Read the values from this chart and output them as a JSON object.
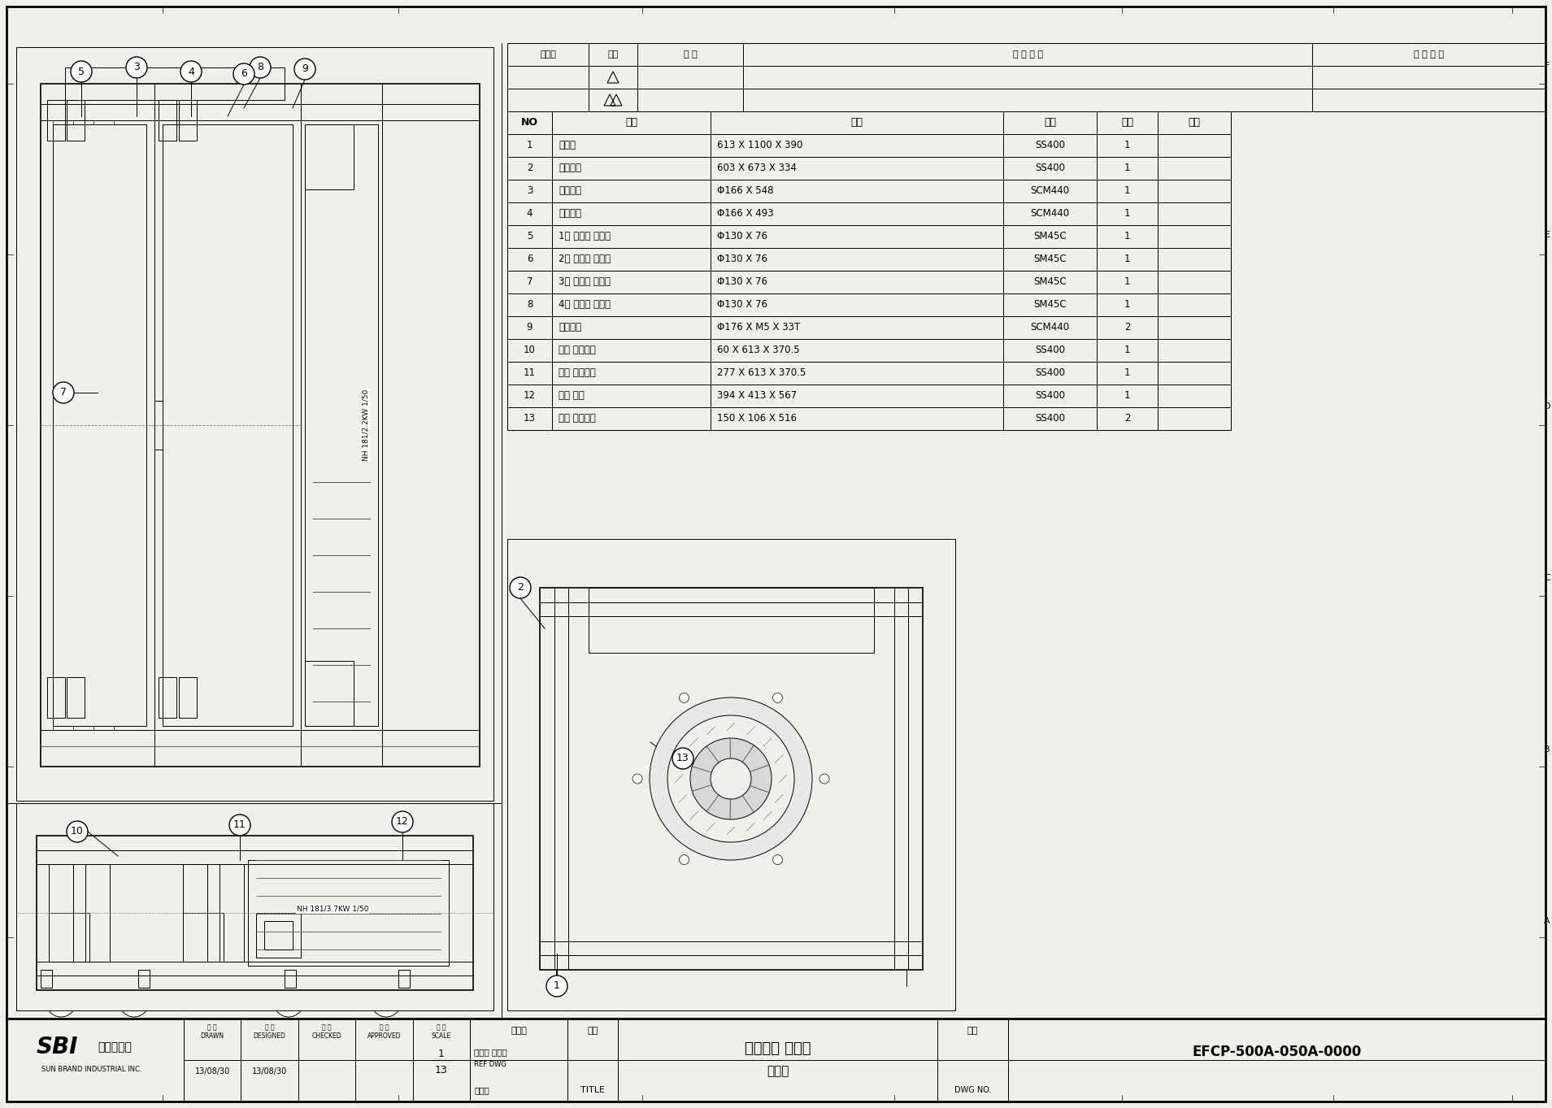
{
  "bg_color": "#f0f0eb",
  "border_color": "#000000",
  "line_color": "#000000",
  "parts_table": {
    "headers": [
      "NO",
      "품명",
      "규격",
      "재질",
      "수량",
      "비고"
    ],
    "rows": [
      [
        "1",
        "프레임",
        "613 X 1100 X 390",
        "SS400",
        "1",
        ""
      ],
      [
        "2",
        "투입호퍼",
        "603 X 673 X 334",
        "SS400",
        "1",
        ""
      ],
      [
        "3",
        "구동롤러",
        "Φ166 X 548",
        "SCM440",
        "1",
        ""
      ],
      [
        "4",
        "피동롤러",
        "Φ166 X 493",
        "SCM440",
        "1",
        ""
      ],
      [
        "5",
        "1번 베어링 케이스",
        "Φ130 X 76",
        "SM45C",
        "1",
        ""
      ],
      [
        "6",
        "2번 베어링 케이스",
        "Φ130 X 76",
        "SM45C",
        "1",
        ""
      ],
      [
        "7",
        "3번 베어링 케이스",
        "Φ130 X 76",
        "SM45C",
        "1",
        ""
      ],
      [
        "8",
        "4번 베어링 케이스",
        "Φ130 X 76",
        "SM45C",
        "1",
        ""
      ],
      [
        "9",
        "구동기어",
        "Φ176 X M5 X 33T",
        "SCM440",
        "2",
        ""
      ],
      [
        "10",
        "본체 염케이스",
        "60 X 613 X 370.5",
        "SS400",
        "1",
        ""
      ],
      [
        "11",
        "모터 염케이스",
        "277 X 613 X 370.5",
        "SS400",
        "1",
        ""
      ],
      [
        "12",
        "모터 커버",
        "394 X 413 X 567",
        "SS400",
        "1",
        ""
      ],
      [
        "13",
        "롤러 스크레퍼",
        "150 X 106 X 516",
        "SS400",
        "2",
        ""
      ]
    ]
  },
  "revision_headers": [
    "년월일",
    "기호",
    "서 명",
    "변 경 사 항",
    "변 경 사 유"
  ],
  "title_block": {
    "drawn": "13/08/30",
    "designed": "13/08/30",
    "checked": "",
    "approved": "",
    "related": "관련도",
    "related_val": "에너지 기자재",
    "ref_dwg": "REF DWG",
    "ref_val": "농진청",
    "drawing_type_label": "도형",
    "drawing_type_val": "거대역새 압착기",
    "title_label": "TITLE",
    "title_val": "조립도",
    "dwg_no_label": "도번",
    "dwg_no_val": "EFCP-500A-050A-0000",
    "dwgno_label": "DWG NO.",
    "company_kr": "해표산업주",
    "company_en": "SUN BRAND INDUSTRIAL INC."
  }
}
